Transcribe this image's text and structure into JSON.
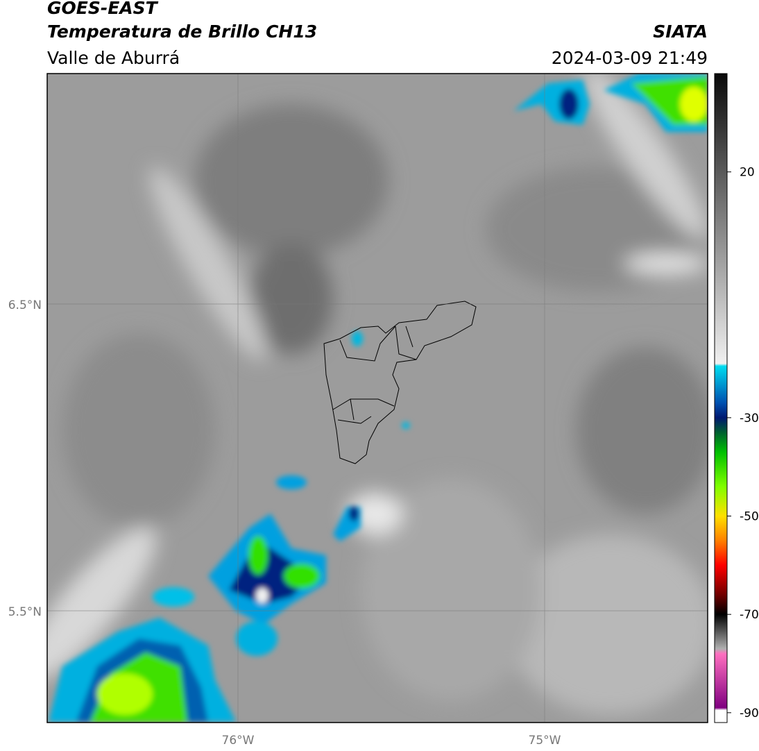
{
  "header": {
    "satellite": "GOES-EAST",
    "product": "Temperatura de Brillo CH13",
    "region": "Valle de Aburrá",
    "agency": "SIATA",
    "datetime": "2024-03-09 21:49"
  },
  "map": {
    "lat_labels": [
      "6.5°N",
      "5.5°N"
    ],
    "lon_labels": [
      "76°W",
      "75°W"
    ]
  },
  "colorbar": {
    "lim": [
      -92,
      40
    ],
    "ticks": [
      20,
      -30,
      -50,
      -70,
      -90
    ],
    "colormap": [
      {
        "value": 40,
        "color": "#0a0a0a"
      },
      {
        "value": 20,
        "color": "#5a5a5a"
      },
      {
        "value": -19,
        "color": "#f0f0f0"
      },
      {
        "value": -19.5,
        "color": "#00dcf0"
      },
      {
        "value": -27,
        "color": "#0050b0"
      },
      {
        "value": -30,
        "color": "#001870"
      },
      {
        "value": -33,
        "color": "#006030"
      },
      {
        "value": -37,
        "color": "#00c000"
      },
      {
        "value": -44,
        "color": "#80ff00"
      },
      {
        "value": -50,
        "color": "#ffe000"
      },
      {
        "value": -55,
        "color": "#ff8000"
      },
      {
        "value": -60,
        "color": "#ff0000"
      },
      {
        "value": -66,
        "color": "#700000"
      },
      {
        "value": -70,
        "color": "#000000"
      },
      {
        "value": -77,
        "color": "#b0b0b0"
      },
      {
        "value": -78,
        "color": "#ff70c0"
      },
      {
        "value": -89,
        "color": "#800080"
      },
      {
        "value": -89.5,
        "color": "#ffffff"
      }
    ]
  }
}
